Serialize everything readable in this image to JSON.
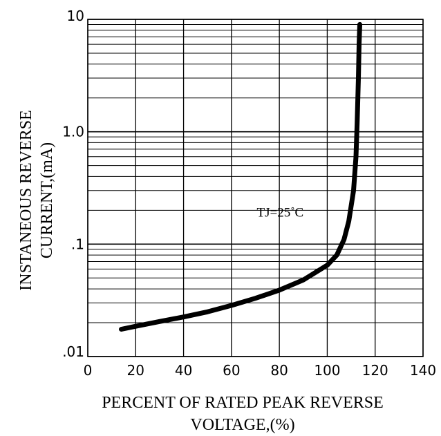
{
  "chart_data": {
    "type": "line",
    "xlabel_lines": [
      "PERCENT OF RATED PEAK REVERSE",
      "VOLTAGE,(%)"
    ],
    "ylabel_lines": [
      "INSTANEOUS REVERSE",
      "CURRENT,(mA)"
    ],
    "xlim": [
      0,
      140
    ],
    "ylim": [
      0.01,
      10
    ],
    "yscale": "log",
    "grid": true,
    "x_ticks": [
      0,
      20,
      40,
      60,
      80,
      100,
      120,
      140
    ],
    "x_tick_labels": [
      "0",
      "20",
      "40",
      "60",
      "80",
      "100",
      "120",
      "140"
    ],
    "y_ticks": [
      0.01,
      0.1,
      1,
      10
    ],
    "y_tick_labels": [
      ".01",
      ".1",
      "1.0",
      "10"
    ],
    "annotation": {
      "text": "TJ=25˚C",
      "x": 70,
      "y": 0.2
    },
    "series": [
      {
        "x": [
          14,
          20,
          30,
          40,
          50,
          60,
          70,
          80,
          90,
          100,
          104,
          107,
          109,
          111,
          112,
          112.5,
          113,
          113.3,
          113.6
        ],
        "y": [
          0.0175,
          0.0186,
          0.0205,
          0.0225,
          0.025,
          0.0285,
          0.033,
          0.039,
          0.048,
          0.065,
          0.08,
          0.11,
          0.16,
          0.3,
          0.6,
          1.2,
          3.0,
          6.0,
          9.0
        ]
      }
    ]
  }
}
